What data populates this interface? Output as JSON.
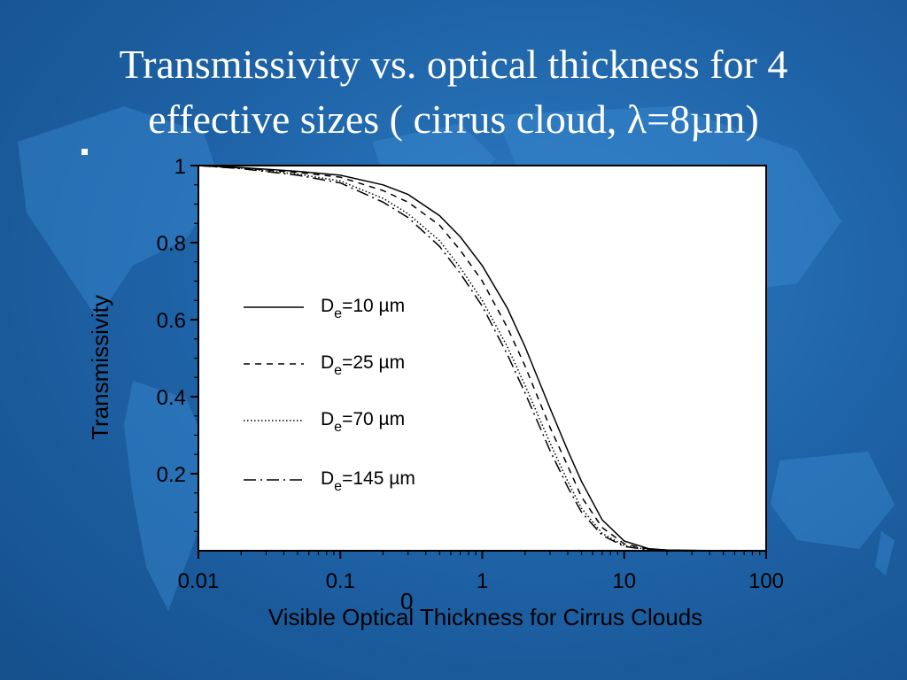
{
  "slide": {
    "title_line1": "Transmissivity vs. optical thickness for 4",
    "title_line2": "effective sizes ( cirrus cloud, λ=8µm)"
  },
  "chart_data": {
    "type": "line",
    "xscale": "log",
    "xlim": [
      0.01,
      100
    ],
    "ylim": [
      0,
      1
    ],
    "xlabel": "Visible Optical Thickness for Cirrus Clouds",
    "ylabel": "Transmissivity",
    "x_ticks": [
      0.01,
      0.1,
      1,
      10,
      100
    ],
    "x_tick_labels": [
      "0.01",
      "0.1",
      "1",
      "10",
      "100"
    ],
    "y_ticks": [
      0.2,
      0.4,
      0.6,
      0.8,
      1
    ],
    "y_tick_labels": [
      "0.2",
      "0.4",
      "0.6",
      "0.8",
      "1"
    ],
    "stray_label": "0",
    "legend_position": "center-left",
    "x": [
      0.01,
      0.02,
      0.05,
      0.1,
      0.2,
      0.3,
      0.5,
      0.7,
      1,
      1.5,
      2,
      3,
      4,
      5,
      7,
      10,
      15,
      20,
      50,
      100
    ],
    "series": [
      {
        "name": "De=10 µm",
        "label_main": "D",
        "label_sub": "e",
        "label_rest": "=10 µm",
        "dash": "solid",
        "values": [
          1.0,
          0.995,
          0.985,
          0.975,
          0.95,
          0.925,
          0.87,
          0.815,
          0.74,
          0.63,
          0.53,
          0.37,
          0.26,
          0.18,
          0.08,
          0.025,
          0.005,
          0.002,
          0.0,
          0.0
        ]
      },
      {
        "name": "De=25 µm",
        "label_main": "D",
        "label_sub": "e",
        "label_rest": "=25 µm",
        "dash": "dashed",
        "values": [
          1.0,
          0.994,
          0.982,
          0.97,
          0.935,
          0.905,
          0.845,
          0.78,
          0.7,
          0.58,
          0.48,
          0.32,
          0.22,
          0.14,
          0.06,
          0.018,
          0.004,
          0.001,
          0.0,
          0.0
        ]
      },
      {
        "name": "De=70 µm",
        "label_main": "D",
        "label_sub": "e",
        "label_rest": "=70 µm",
        "dash": "dotted",
        "values": [
          1.0,
          0.993,
          0.978,
          0.96,
          0.915,
          0.875,
          0.805,
          0.735,
          0.65,
          0.53,
          0.43,
          0.28,
          0.18,
          0.11,
          0.045,
          0.013,
          0.003,
          0.001,
          0.0,
          0.0
        ]
      },
      {
        "name": "De=145 µm",
        "label_main": "D",
        "label_sub": "e",
        "label_rest": "=145 µm",
        "dash": "longdashdot",
        "values": [
          1.0,
          0.992,
          0.975,
          0.955,
          0.905,
          0.865,
          0.79,
          0.72,
          0.635,
          0.51,
          0.41,
          0.26,
          0.165,
          0.1,
          0.04,
          0.011,
          0.002,
          0.001,
          0.0,
          0.0
        ]
      }
    ]
  }
}
